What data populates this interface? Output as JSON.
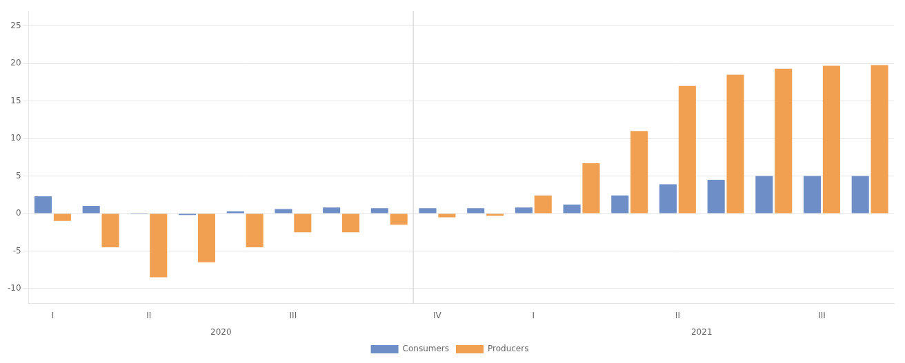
{
  "chart_data": {
    "type": "bar",
    "categories": [
      "I",
      null,
      "II",
      null,
      null,
      "III",
      null,
      null,
      "IV",
      null,
      "I",
      null,
      null,
      "II",
      null,
      null,
      "III",
      null
    ],
    "series": [
      {
        "name": "Consumers",
        "color": "#6e8ec7",
        "values": [
          2.3,
          1.0,
          -0.1,
          -0.2,
          0.3,
          0.6,
          0.8,
          0.7,
          0.7,
          0.7,
          0.8,
          1.2,
          2.4,
          3.9,
          4.5,
          5.0,
          5.0,
          5.0
        ]
      },
      {
        "name": "Producers",
        "color": "#f0a050",
        "values": [
          -1.0,
          -4.5,
          -8.5,
          -6.5,
          -4.5,
          -2.5,
          -2.5,
          -1.5,
          -0.5,
          -0.3,
          2.4,
          6.7,
          11.0,
          17.0,
          18.5,
          19.3,
          19.7,
          19.8
        ]
      }
    ],
    "ylim": [
      -12,
      27
    ],
    "yticks": [
      -10,
      -5,
      0,
      5,
      10,
      15,
      20,
      25
    ],
    "grid": true,
    "legend": "bottom",
    "annotations": [
      {
        "text": "2020",
        "x": 3.5
      },
      {
        "text": "2021",
        "x": 13.5
      }
    ]
  }
}
